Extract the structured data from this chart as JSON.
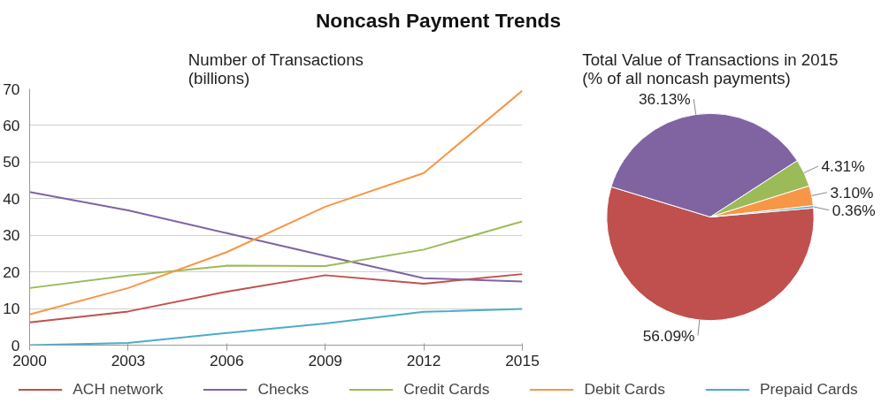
{
  "chart_data": [
    {
      "type": "line",
      "title": "Noncash Payment Trends",
      "subtitle": "Number of Transactions\n(billions)",
      "x": [
        2000,
        2003,
        2006,
        2009,
        2012,
        2015
      ],
      "xlim": [
        2000,
        2015
      ],
      "xticks": [
        2000,
        2003,
        2006,
        2009,
        2012,
        2015
      ],
      "ylim": [
        0,
        70
      ],
      "yticks": [
        0,
        10,
        20,
        30,
        40,
        50,
        60,
        70
      ],
      "grid": "y",
      "legend": "bottom",
      "marker": "none",
      "line_style": "solid",
      "series": [
        {
          "name": "ACH network",
          "color": "#c0504d",
          "values": [
            6.2,
            9.2,
            14.6,
            19.1,
            16.8,
            19.4
          ]
        },
        {
          "name": "Checks",
          "color": "#8064a2",
          "values": [
            41.8,
            36.8,
            30.6,
            24.4,
            18.3,
            17.4
          ]
        },
        {
          "name": "Credit Cards",
          "color": "#9bbb59",
          "values": [
            15.6,
            19.0,
            21.7,
            21.6,
            26.1,
            33.8
          ]
        },
        {
          "name": "Debit Cards",
          "color": "#f79646",
          "values": [
            8.4,
            15.6,
            25.4,
            37.8,
            47.0,
            69.5
          ]
        },
        {
          "name": "Prepaid Cards",
          "color": "#4bacc6",
          "values": [
            0,
            0.6,
            3.3,
            5.9,
            9.1,
            9.9
          ]
        }
      ]
    },
    {
      "type": "pie",
      "title": "Total Value of Transactions in 2015\n(% of all noncash payments)",
      "categories": [
        null,
        null,
        null,
        null,
        null
      ],
      "values": [
        56.09,
        36.13,
        4.31,
        3.1,
        0.36
      ],
      "colors": [
        "#c0504d",
        "#8064a2",
        "#9bbb59",
        "#f79646",
        "#4bacc6"
      ],
      "value_labels": [
        "56.09%",
        "36.13%",
        "4.31%",
        "3.10%",
        "0.36%"
      ]
    }
  ]
}
